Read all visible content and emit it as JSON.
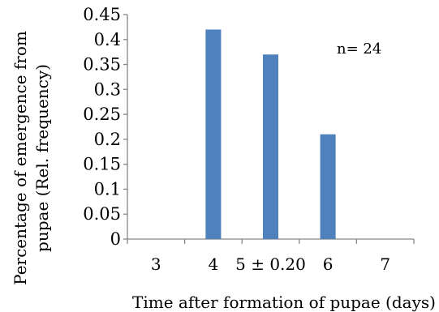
{
  "chart_data": {
    "type": "bar",
    "categories": [
      "3",
      "4",
      "5 ± 0.20",
      "6",
      "7"
    ],
    "values": [
      0,
      0.42,
      0.37,
      0.21,
      0
    ],
    "ylim": [
      0,
      0.45
    ],
    "ytick_labels": [
      "0",
      "0.05",
      "0.1",
      "0.15",
      "0.2",
      "0.25",
      "0.3",
      "0.35",
      "0.4",
      "0.45"
    ],
    "ylabel_lines": [
      "Percentage of emergence from",
      "pupae (Rel. frequency)"
    ],
    "xlabel": "Time after formation of pupae (days)",
    "annotation": "n= 24",
    "bar_color": "#4f81bd",
    "axis_color": "#868686",
    "grid": false,
    "legend": "none"
  }
}
